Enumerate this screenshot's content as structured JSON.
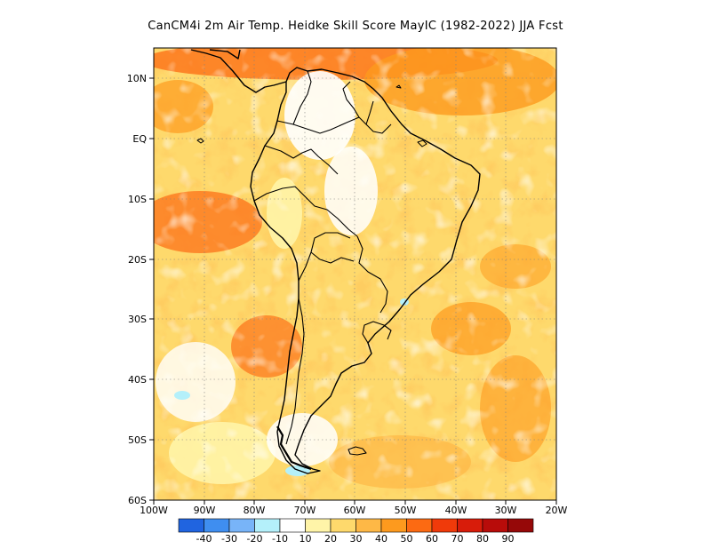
{
  "title": "CanCM4i   2m Air Temp. Heidke Skill Score MayIC (1982-2022) JJA Fcst",
  "map": {
    "lon_labels": [
      "100W",
      "90W",
      "80W",
      "70W",
      "60W",
      "50W",
      "40W",
      "30W",
      "20W"
    ],
    "lat_labels": [
      "10N",
      "EQ",
      "10S",
      "20S",
      "30S",
      "40S",
      "50S",
      "60S"
    ],
    "lon_range": [
      -100,
      -20
    ],
    "lat_range": [
      -60,
      15
    ]
  },
  "legend": {
    "labels": [
      "-40",
      "-30",
      "-20",
      "-10",
      "10",
      "20",
      "30",
      "40",
      "50",
      "60",
      "70",
      "80",
      "90"
    ],
    "colors": [
      "#2064e0",
      "#3f8ef0",
      "#78b4f8",
      "#b4f0fa",
      "#ffffff",
      "#fff4a8",
      "#fed96c",
      "#feb846",
      "#fd9a1e",
      "#fc6a12",
      "#f03a0a",
      "#d81c0a",
      "#b80c0a",
      "#960808"
    ]
  }
}
